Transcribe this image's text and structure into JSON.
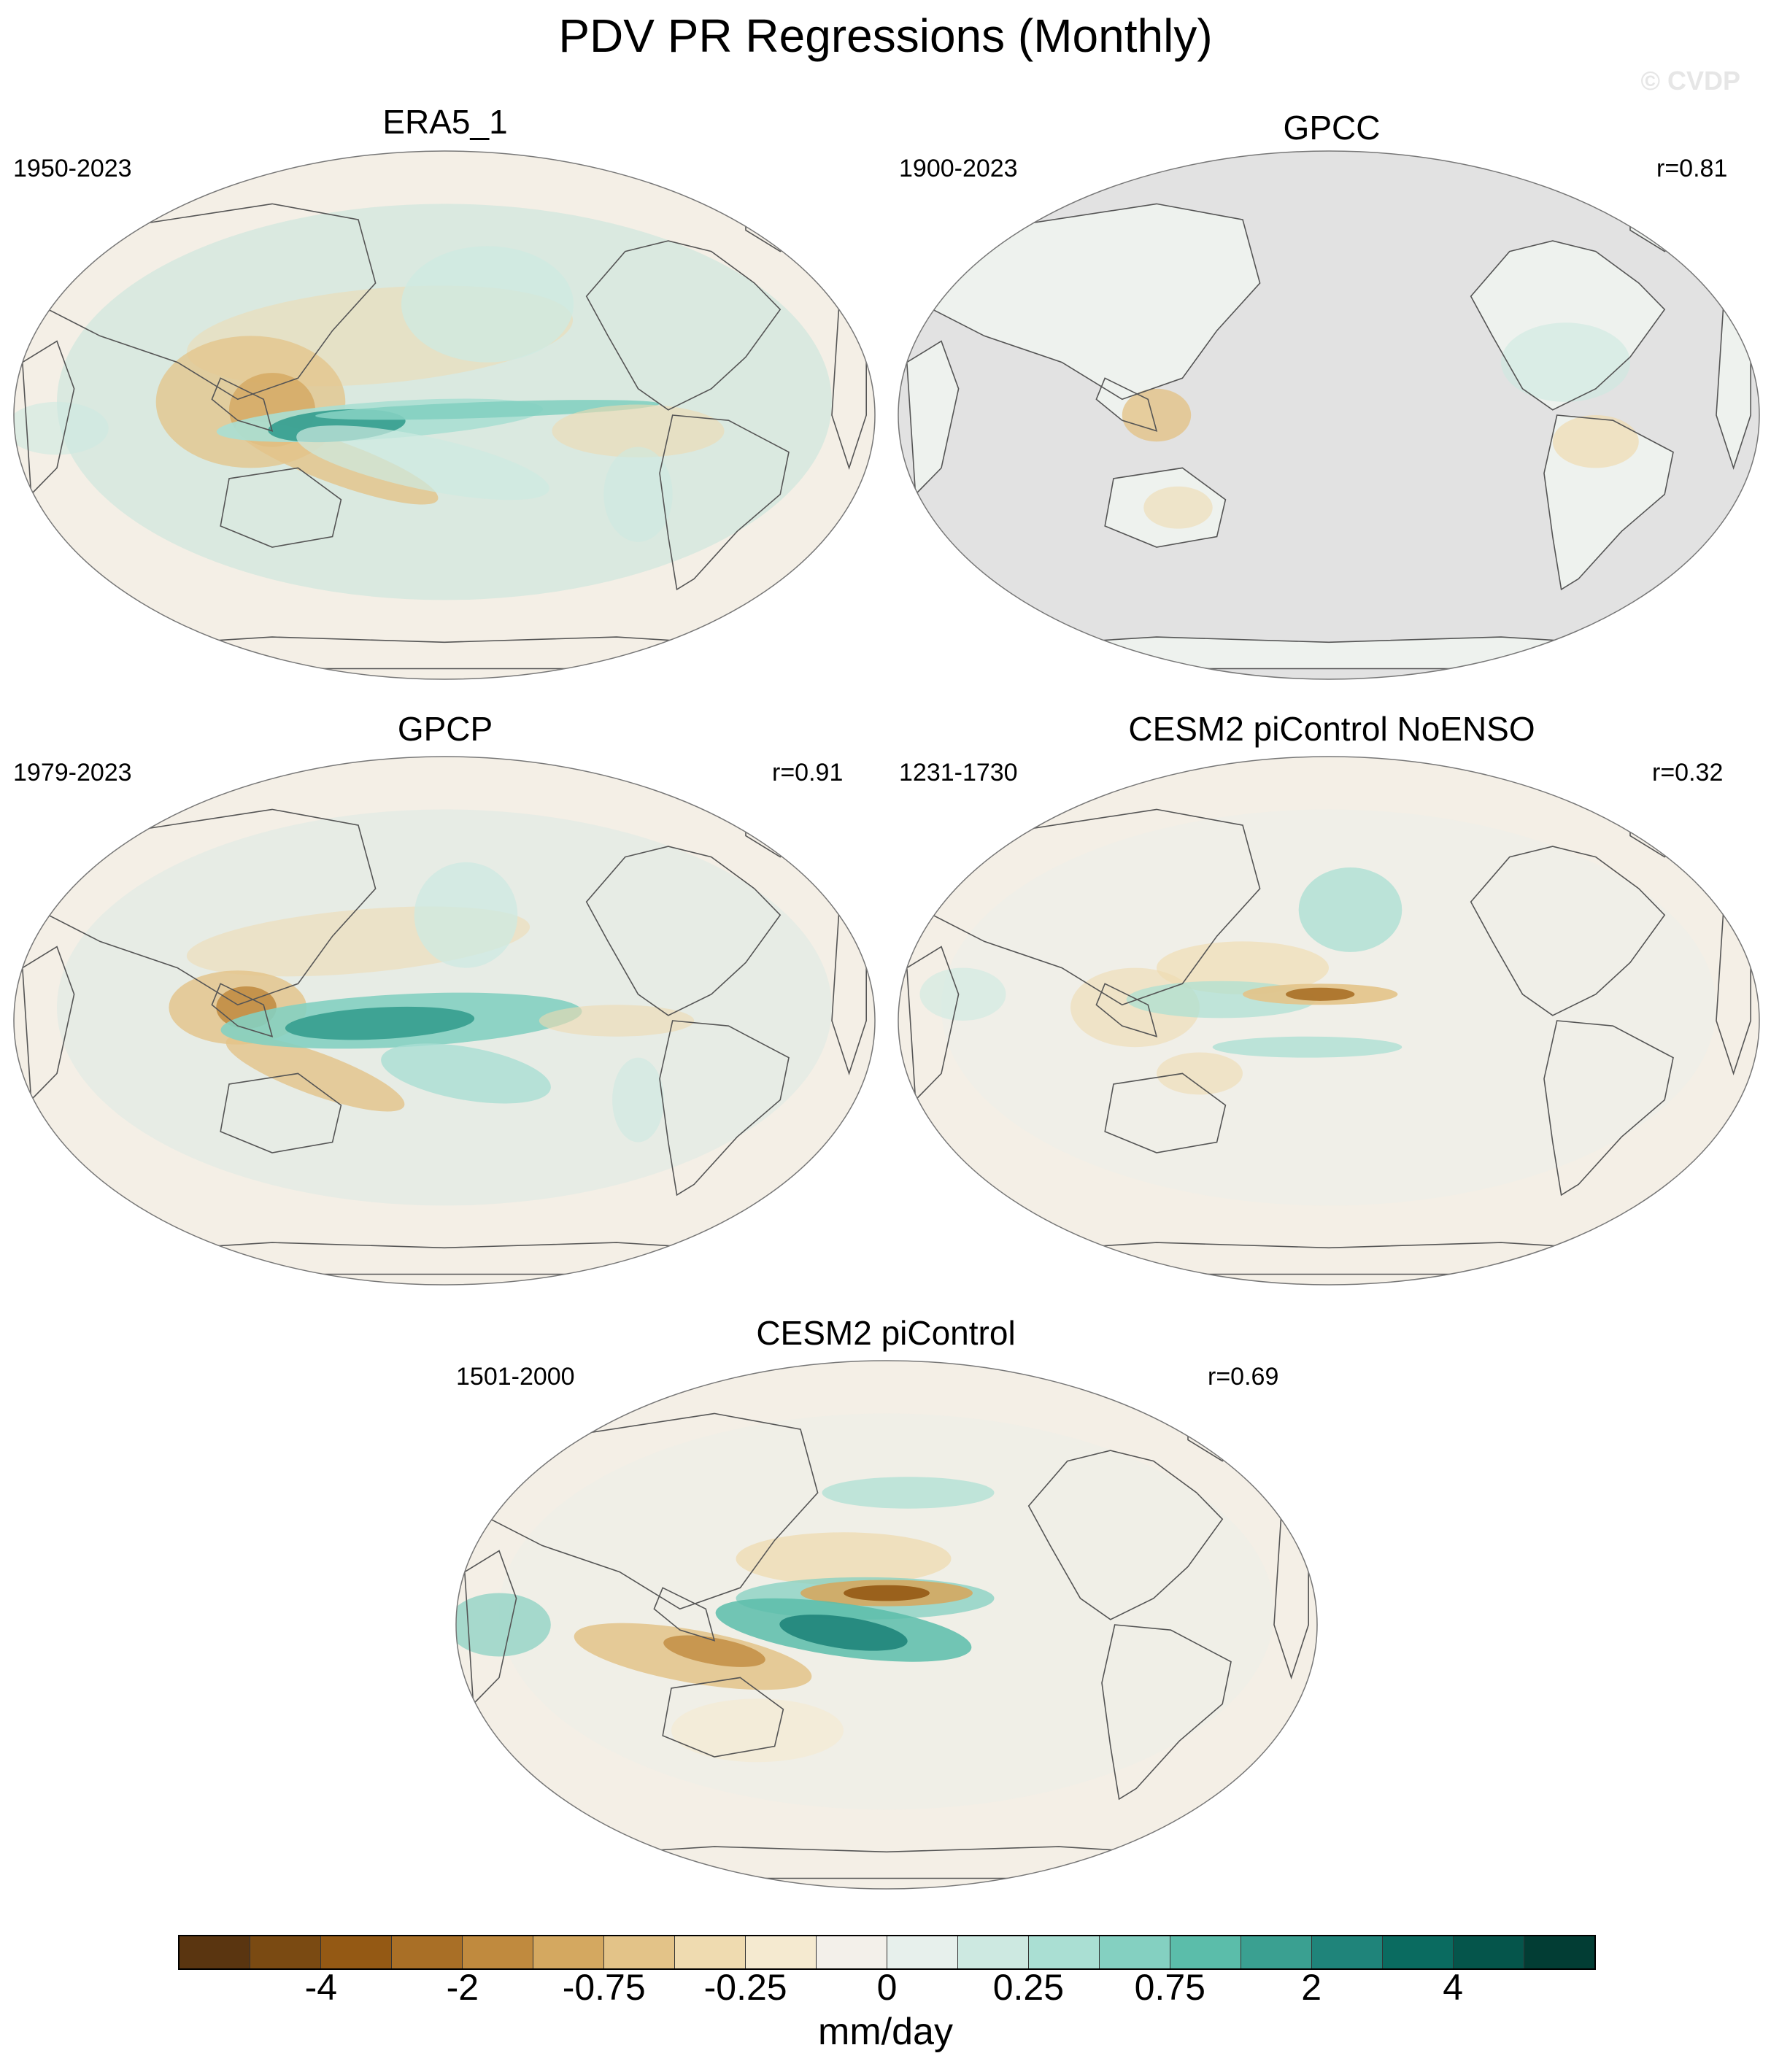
{
  "title": "PDV PR Regressions (Monthly)",
  "watermark": "© CVDP",
  "panels": [
    {
      "title": "ERA5_1",
      "period": "1950-2023",
      "corr": "",
      "kind": "era5"
    },
    {
      "title": "GPCC",
      "period": "1900-2023",
      "corr": "r=0.81",
      "kind": "gpcc"
    },
    {
      "title": "GPCP",
      "period": "1979-2023",
      "corr": "r=0.91",
      "kind": "gpcp"
    },
    {
      "title": "CESM2 piControl NoENSO",
      "period": "1231-1730",
      "corr": "r=0.32",
      "kind": "noenso"
    },
    {
      "title": "CESM2 piControl",
      "period": "1501-2000",
      "corr": "r=0.69",
      "kind": "picontrol"
    }
  ],
  "colorbar": {
    "units": "mm/day",
    "labels": [
      "-4",
      "-2",
      "-0.75",
      "-0.25",
      "0",
      "0.25",
      "0.75",
      "2",
      "4"
    ],
    "colors": [
      "#5a3510",
      "#7a4a12",
      "#945914",
      "#a96f26",
      "#c08a3e",
      "#d4a860",
      "#e3c388",
      "#efdbb0",
      "#f5ead0",
      "#f3f0ea",
      "#e7f0ec",
      "#cde9e1",
      "#aadfd3",
      "#84d0c1",
      "#5bbdaa",
      "#3aa091",
      "#1f847a",
      "#0a6b60",
      "#05554b",
      "#023d34"
    ],
    "land_color": "#e2e2e2",
    "ocean_color": "#f4efe6"
  }
}
